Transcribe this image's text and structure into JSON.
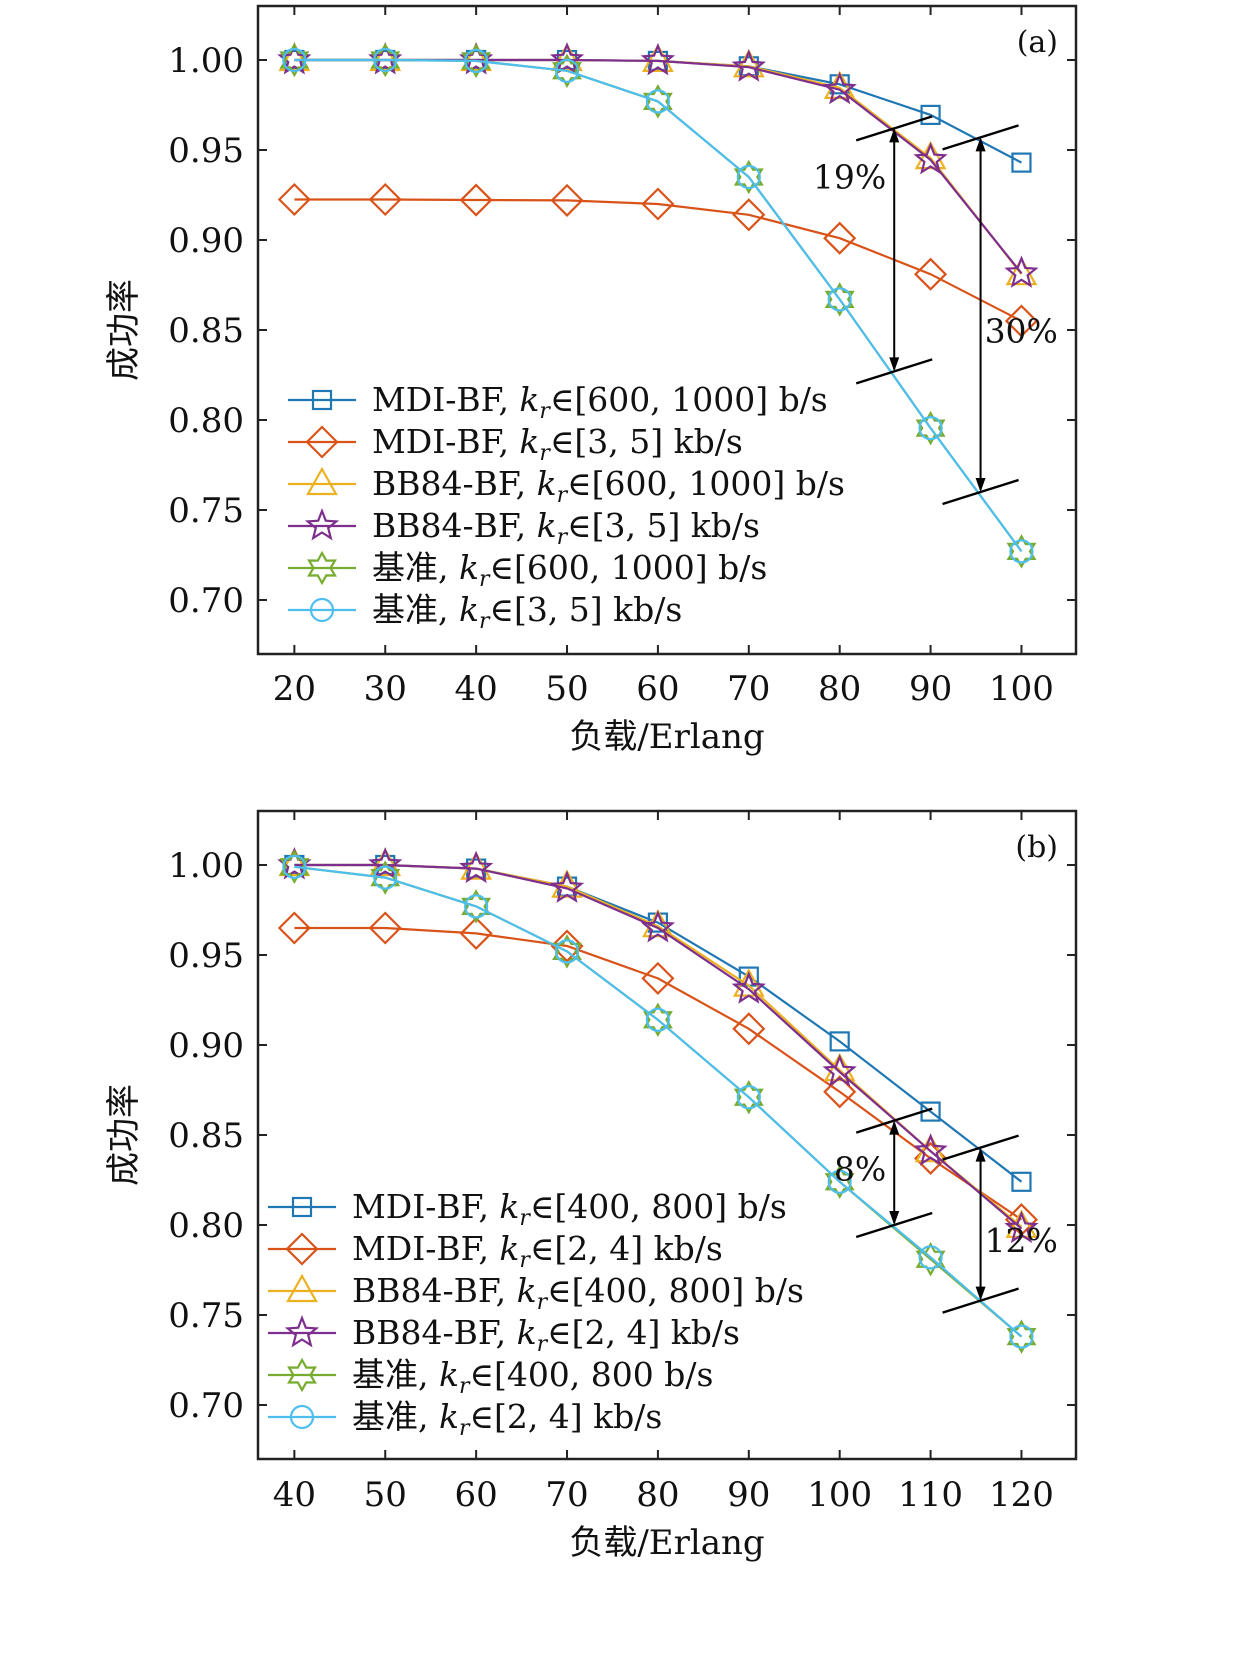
{
  "colors": {
    "mdi_low": "#1f77b4",
    "mdi_high": "#d95319",
    "bb84_low": "#edb120",
    "bb84_high": "#7e2f8e",
    "base_low": "#77ac30",
    "base_high": "#4dbeee"
  },
  "chart_data": [
    {
      "type": "line",
      "panel_label": "(a)",
      "xlabel": "负载/Erlang",
      "ylabel": "成功率",
      "x": [
        20,
        30,
        40,
        50,
        60,
        70,
        80,
        90,
        100
      ],
      "xlim": [
        16,
        106
      ],
      "ylim": [
        0.67,
        1.03
      ],
      "xticks": [
        "20",
        "30",
        "40",
        "50",
        "60",
        "70",
        "80",
        "90",
        "100"
      ],
      "yticks": [
        "0.70",
        "0.75",
        "0.80",
        "0.85",
        "0.90",
        "0.95",
        "1.00"
      ],
      "series": [
        {
          "name": "MDI-BF, k_r∈[600, 1000] b/s",
          "pre": "MDI-BF, ",
          "post": "∈[600, 1000] b/s",
          "marker": "square",
          "color_key": "mdi_low",
          "values": [
            1.0,
            1.0,
            1.0,
            1.0,
            0.9995,
            0.9965,
            0.9865,
            0.9695,
            0.943
          ]
        },
        {
          "name": "MDI-BF, k_r∈[3, 5] kb/s",
          "pre": "MDI-BF, ",
          "post": "∈[3, 5] kb/s",
          "marker": "diamond",
          "color_key": "mdi_high",
          "values": [
            0.9225,
            0.9225,
            0.9222,
            0.922,
            0.92,
            0.914,
            0.901,
            0.881,
            0.855
          ]
        },
        {
          "name": "BB84-BF, k_r∈[600, 1000] b/s",
          "pre": "BB84-BF, ",
          "post": "∈[600, 1000] b/s",
          "marker": "triangle",
          "color_key": "bb84_low",
          "values": [
            1.0,
            1.0,
            1.0,
            1.0,
            0.9995,
            0.9965,
            0.9845,
            0.9455,
            0.881
          ]
        },
        {
          "name": "BB84-BF, k_r∈[3, 5] kb/s",
          "pre": "BB84-BF, ",
          "post": "∈[3, 5] kb/s",
          "marker": "star5",
          "color_key": "bb84_high",
          "values": [
            1.0,
            1.0,
            1.0,
            1.0,
            0.9995,
            0.996,
            0.9835,
            0.9445,
            0.8815
          ]
        },
        {
          "name": "基准, k_r∈[600, 1000] b/s",
          "pre": "基准, ",
          "post": "∈[600, 1000] b/s",
          "marker": "star6",
          "color_key": "base_low",
          "values": [
            1.0,
            1.0,
            0.9995,
            0.994,
            0.977,
            0.935,
            0.867,
            0.7955,
            0.727
          ]
        },
        {
          "name": "基准, k_r∈[3, 5] kb/s",
          "pre": "基准, ",
          "post": "∈[3, 5] kb/s",
          "marker": "circle",
          "color_key": "base_high",
          "values": [
            1.0,
            1.0,
            0.9995,
            0.994,
            0.977,
            0.935,
            0.867,
            0.7955,
            0.727
          ]
        }
      ],
      "annotations": [
        {
          "label": "19%",
          "x": 86,
          "y_top": 0.962,
          "y_bottom": 0.827
        },
        {
          "label": "30%",
          "x": 95.5,
          "y_top": 0.957,
          "y_bottom": 0.76
        }
      ]
    },
    {
      "type": "line",
      "panel_label": "(b)",
      "xlabel": "负载/Erlang",
      "ylabel": "成功率",
      "x": [
        40,
        50,
        60,
        70,
        80,
        90,
        100,
        110,
        120
      ],
      "xlim": [
        36,
        126
      ],
      "ylim": [
        0.67,
        1.03
      ],
      "xticks": [
        "40",
        "50",
        "60",
        "70",
        "80",
        "90",
        "100",
        "110",
        "120"
      ],
      "yticks": [
        "0.70",
        "0.75",
        "0.80",
        "0.85",
        "0.90",
        "0.95",
        "1.00"
      ],
      "series": [
        {
          "name": "MDI-BF, k_r∈[400, 800] b/s",
          "pre": "MDI-BF, ",
          "post": "∈[400, 800] b/s",
          "marker": "square",
          "color_key": "mdi_low",
          "values": [
            1.0,
            1.0,
            0.998,
            0.988,
            0.968,
            0.938,
            0.902,
            0.863,
            0.824
          ]
        },
        {
          "name": "MDI-BF, k_r∈[2, 4] kb/s",
          "pre": "MDI-BF, ",
          "post": "∈[2, 4] kb/s",
          "marker": "diamond",
          "color_key": "mdi_high",
          "values": [
            0.965,
            0.965,
            0.962,
            0.955,
            0.937,
            0.909,
            0.874,
            0.837,
            0.803
          ]
        },
        {
          "name": "BB84-BF, k_r∈[400, 800] b/s",
          "pre": "BB84-BF, ",
          "post": "∈[400, 800] b/s",
          "marker": "triangle",
          "color_key": "bb84_low",
          "values": [
            1.0,
            1.0,
            0.998,
            0.988,
            0.966,
            0.933,
            0.886,
            0.841,
            0.799
          ]
        },
        {
          "name": "BB84-BF, k_r∈[2, 4] kb/s",
          "pre": "BB84-BF, ",
          "post": "∈[2, 4] kb/s",
          "marker": "star5",
          "color_key": "bb84_high",
          "values": [
            1.0,
            1.0,
            0.998,
            0.987,
            0.965,
            0.931,
            0.885,
            0.841,
            0.798
          ]
        },
        {
          "name": "基准, k_r∈[400, 800 b/s",
          "pre": "基准, ",
          "post": "∈[400, 800 b/s",
          "marker": "star6",
          "color_key": "base_low",
          "values": [
            0.999,
            0.993,
            0.977,
            0.952,
            0.914,
            0.871,
            0.824,
            0.781,
            0.738
          ]
        },
        {
          "name": "基准, k_r∈[2, 4] kb/s",
          "pre": "基准, ",
          "post": "∈[2, 4] kb/s",
          "marker": "circle",
          "color_key": "base_high",
          "values": [
            0.999,
            0.993,
            0.977,
            0.952,
            0.914,
            0.871,
            0.824,
            0.782,
            0.738
          ]
        }
      ],
      "annotations": [
        {
          "label": "8%",
          "x": 106,
          "y_top": 0.858,
          "y_bottom": 0.8
        },
        {
          "label": "12%",
          "x": 115.5,
          "y_top": 0.843,
          "y_bottom": 0.758
        }
      ]
    }
  ]
}
